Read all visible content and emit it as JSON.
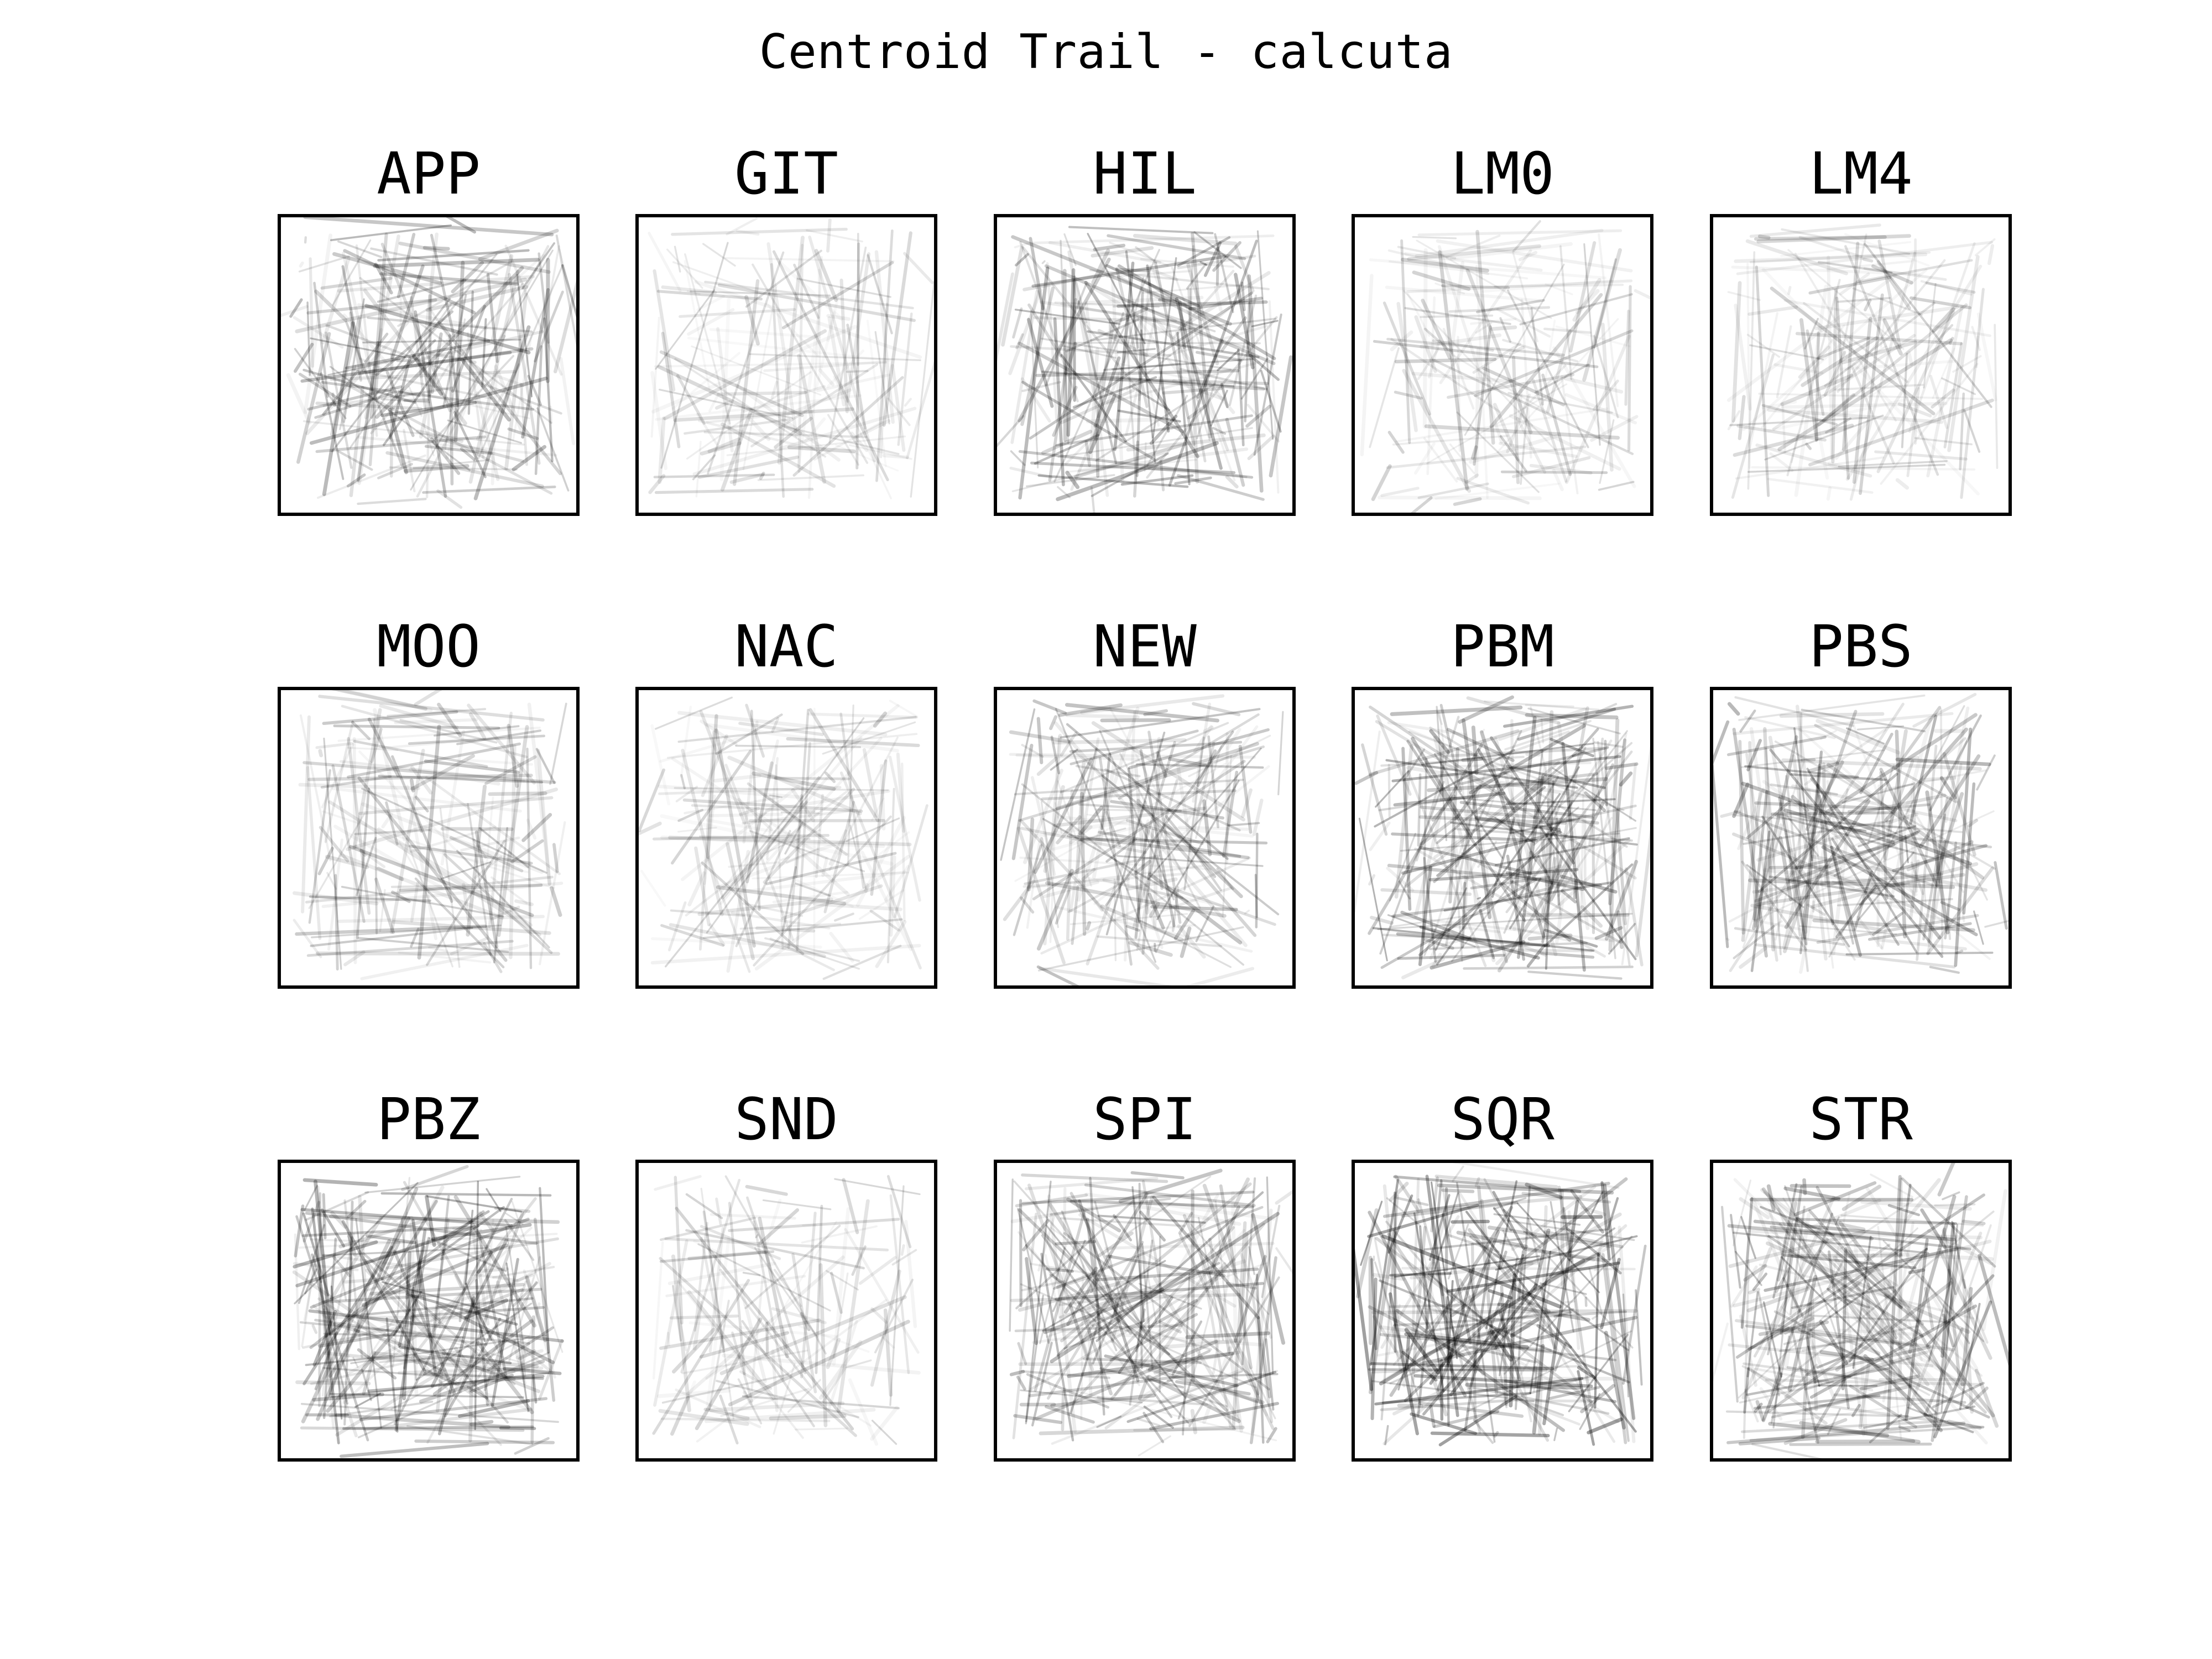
{
  "figure": {
    "title": "Centroid Trail - calcuta"
  },
  "chart_data": [
    {
      "type": "line",
      "title": "APP",
      "density": 0.78,
      "darkness": 0.55,
      "seed": 11
    },
    {
      "type": "line",
      "title": "GIT",
      "density": 0.45,
      "darkness": 0.18,
      "seed": 23
    },
    {
      "type": "line",
      "title": "HIL",
      "density": 0.9,
      "darkness": 0.62,
      "seed": 37
    },
    {
      "type": "line",
      "title": "LM0",
      "density": 0.5,
      "darkness": 0.25,
      "seed": 41
    },
    {
      "type": "line",
      "title": "LM4",
      "density": 0.5,
      "darkness": 0.24,
      "seed": 53
    },
    {
      "type": "line",
      "title": "MOO",
      "density": 0.55,
      "darkness": 0.38,
      "seed": 61
    },
    {
      "type": "line",
      "title": "NAC",
      "density": 0.55,
      "darkness": 0.22,
      "seed": 73
    },
    {
      "type": "line",
      "title": "NEW",
      "density": 0.72,
      "darkness": 0.45,
      "seed": 89
    },
    {
      "type": "line",
      "title": "PBM",
      "density": 1.0,
      "darkness": 0.7,
      "seed": 97
    },
    {
      "type": "line",
      "title": "PBS",
      "density": 0.85,
      "darkness": 0.58,
      "seed": 103
    },
    {
      "type": "line",
      "title": "PBZ",
      "density": 1.0,
      "darkness": 0.68,
      "seed": 113
    },
    {
      "type": "line",
      "title": "SND",
      "density": 0.4,
      "darkness": 0.2,
      "seed": 127
    },
    {
      "type": "line",
      "title": "SPI",
      "density": 0.88,
      "darkness": 0.55,
      "seed": 131
    },
    {
      "type": "line",
      "title": "SQR",
      "density": 1.0,
      "darkness": 0.9,
      "seed": 139
    },
    {
      "type": "line",
      "title": "STR",
      "density": 1.0,
      "darkness": 0.6,
      "seed": 149
    }
  ],
  "colors": {
    "line": "#000000",
    "frame": "#000000",
    "background": "#ffffff"
  }
}
